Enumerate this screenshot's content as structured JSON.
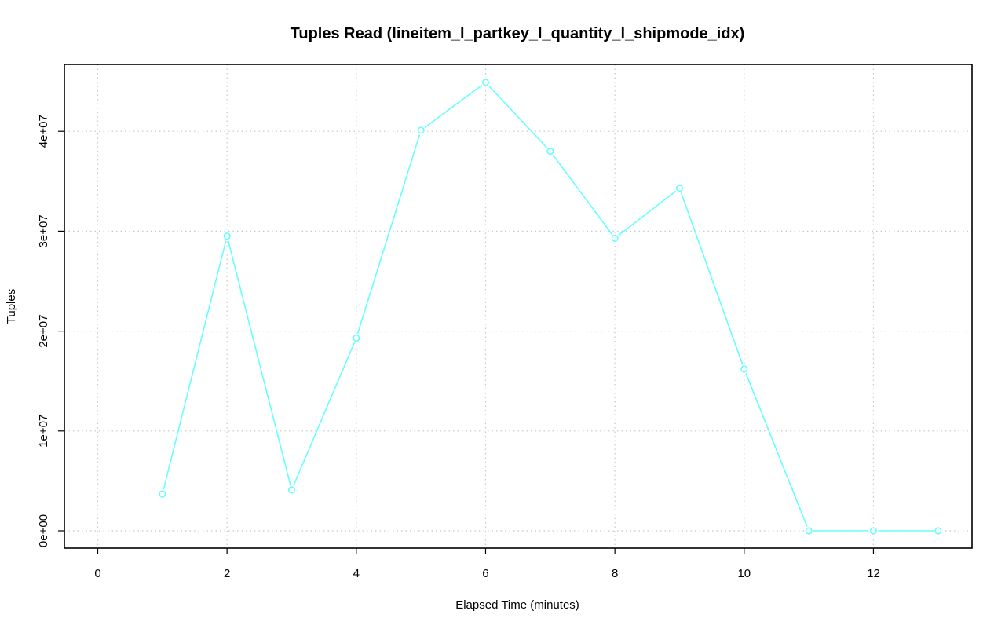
{
  "chart_data": {
    "type": "line",
    "title": "Tuples Read (lineitem_l_partkey_l_quantity_l_shipmode_idx)",
    "xlabel": "Elapsed Time (minutes)",
    "ylabel": "Tuples",
    "xlim": [
      0,
      13
    ],
    "ylim": [
      0,
      45000000
    ],
    "x_ticks": [
      0,
      2,
      4,
      6,
      8,
      10,
      12
    ],
    "y_ticks": [
      0,
      10000000,
      20000000,
      30000000,
      40000000
    ],
    "y_tick_labels": [
      "0e+00",
      "1e+07",
      "2e+07",
      "3e+07",
      "4e+07"
    ],
    "grid": true,
    "series": [
      {
        "color": "#66ffff",
        "marker": "open-circle",
        "x": [
          1,
          2,
          3,
          4,
          5,
          6,
          7,
          8,
          9,
          10,
          11,
          12,
          13
        ],
        "y": [
          3700000,
          29500000,
          4100000,
          19300000,
          40100000,
          44900000,
          38000000,
          29300000,
          34300000,
          16200000,
          0,
          0,
          0
        ]
      }
    ]
  }
}
